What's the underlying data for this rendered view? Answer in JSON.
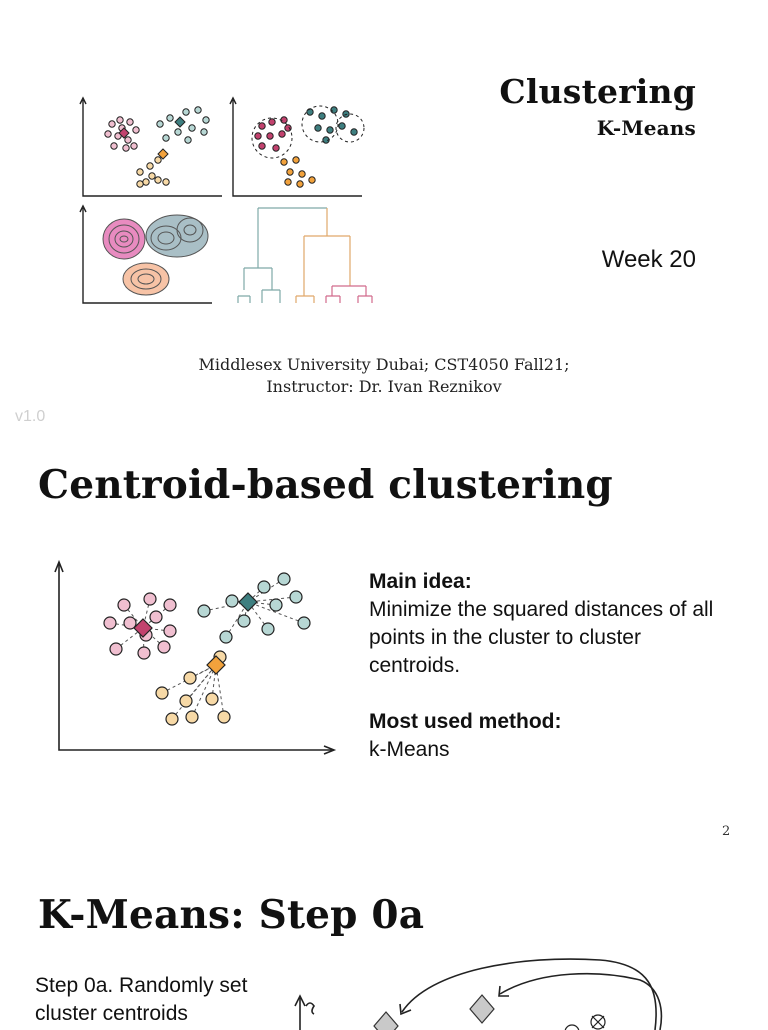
{
  "slide1": {
    "title": "Clustering",
    "subtitle": "K-Means",
    "week": "Week 20",
    "credit_line1": "Middlesex University Dubai; CST4050 Fall21;",
    "credit_line2": "Instructor: Dr. Ivan Reznikov",
    "version": "v1.0",
    "illustration_icon": "clustering-methods-illustration"
  },
  "slide2": {
    "title": "Centroid-based clustering",
    "main_idea_label": "Main idea:",
    "main_idea_text": "Minimize the squared distances of all points in the cluster to cluster centroids.",
    "method_label": "Most used method:",
    "method_text": "k-Means",
    "page_number": "2",
    "illustration_icon": "centroid-scatter-illustration"
  },
  "slide3": {
    "title": "K-Means: Step 0a",
    "step_text": "Step 0a. Randomly set cluster centroids",
    "illustration_icon": "random-centroids-illustration"
  },
  "colors": {
    "pink": "#c2426e",
    "teal": "#3e7f80",
    "orange": "#f2a23c",
    "light_pink": "#f0bfd0",
    "light_teal": "#b7d7d4",
    "light_orange": "#f7d9a6",
    "grey": "#9a9a9a"
  }
}
